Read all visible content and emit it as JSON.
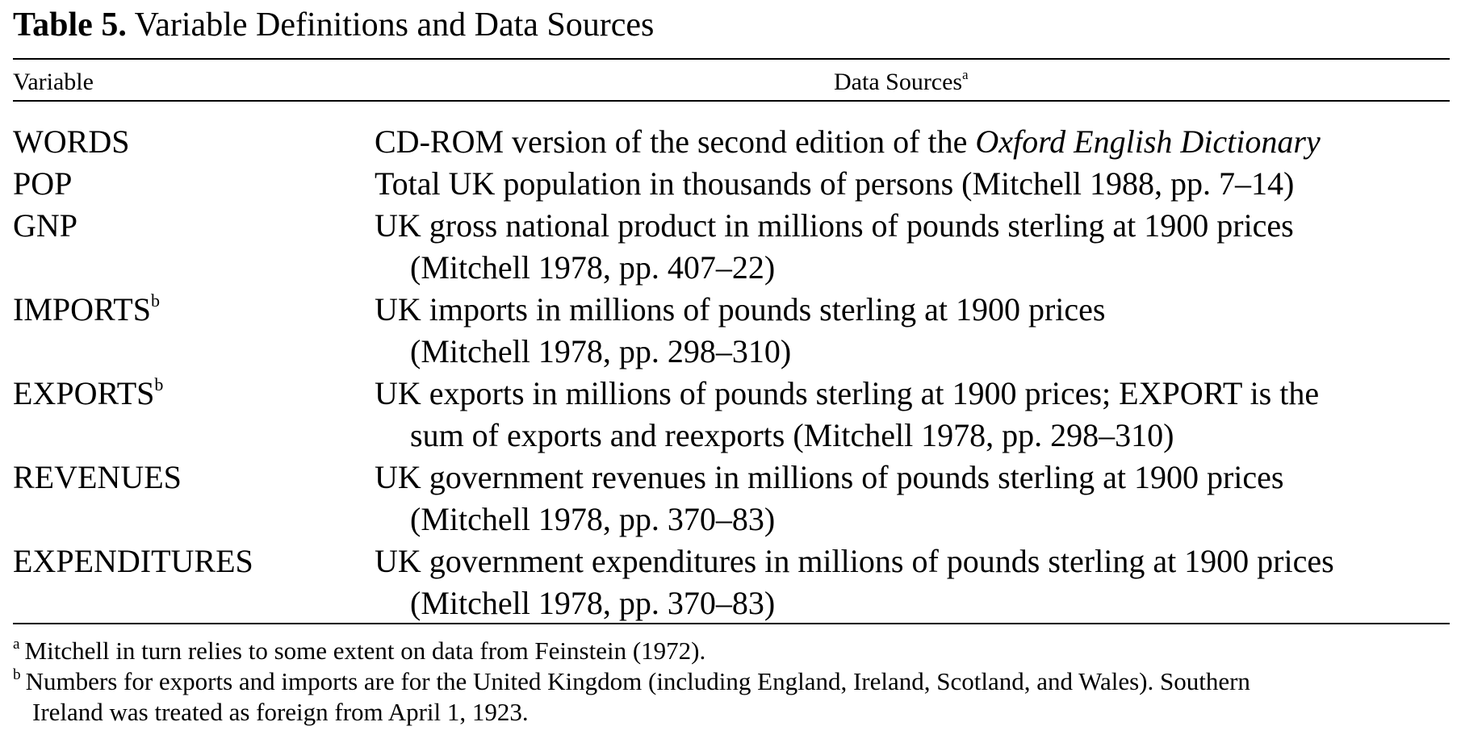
{
  "table": {
    "label": "Table 5.",
    "title": "Variable Definitions and Data Sources",
    "header": {
      "variable": "Variable",
      "sources": "Data Sources",
      "sources_note_mark": "a"
    },
    "rows": [
      {
        "variable": "WORDS",
        "mark": "",
        "source_line1_pre": "CD-ROM version of the second edition of the ",
        "source_line1_italic": "Oxford English Dictionary",
        "source_line2": ""
      },
      {
        "variable": "POP",
        "mark": "",
        "source_line1_pre": "Total UK population in thousands of persons (Mitchell 1988, pp. 7–14)",
        "source_line1_italic": "",
        "source_line2": ""
      },
      {
        "variable": "GNP",
        "mark": "",
        "source_line1_pre": "UK gross national product in millions of pounds sterling at 1900 prices",
        "source_line1_italic": "",
        "source_line2": "(Mitchell 1978, pp. 407–22)"
      },
      {
        "variable": "IMPORTS",
        "mark": "b",
        "source_line1_pre": "UK imports in millions of pounds sterling at 1900 prices",
        "source_line1_italic": "",
        "source_line2": "(Mitchell 1978, pp. 298–310)"
      },
      {
        "variable": "EXPORTS",
        "mark": "b",
        "source_line1_pre": "UK exports in millions of pounds sterling at 1900 prices; EXPORT is the",
        "source_line1_italic": "",
        "source_line2": "sum of exports and reexports (Mitchell 1978, pp. 298–310)"
      },
      {
        "variable": "REVENUES",
        "mark": "",
        "source_line1_pre": "UK government revenues in millions of pounds sterling at 1900 prices",
        "source_line1_italic": "",
        "source_line2": "(Mitchell 1978, pp. 370–83)"
      },
      {
        "variable": "EXPENDITURES",
        "mark": "",
        "source_line1_pre": "UK government expenditures in millions of pounds sterling at 1900 prices",
        "source_line1_italic": "",
        "source_line2": "(Mitchell 1978, pp. 370–83)"
      }
    ],
    "footnotes": [
      {
        "mark": "a",
        "line1": "Mitchell in turn relies to some extent on data from Feinstein (1972).",
        "line2": ""
      },
      {
        "mark": "b",
        "line1": "Numbers for exports and imports are for the United Kingdom (including England, Ireland, Scotland, and Wales). Southern",
        "line2": "Ireland was treated as foreign from April 1, 1923."
      }
    ]
  }
}
